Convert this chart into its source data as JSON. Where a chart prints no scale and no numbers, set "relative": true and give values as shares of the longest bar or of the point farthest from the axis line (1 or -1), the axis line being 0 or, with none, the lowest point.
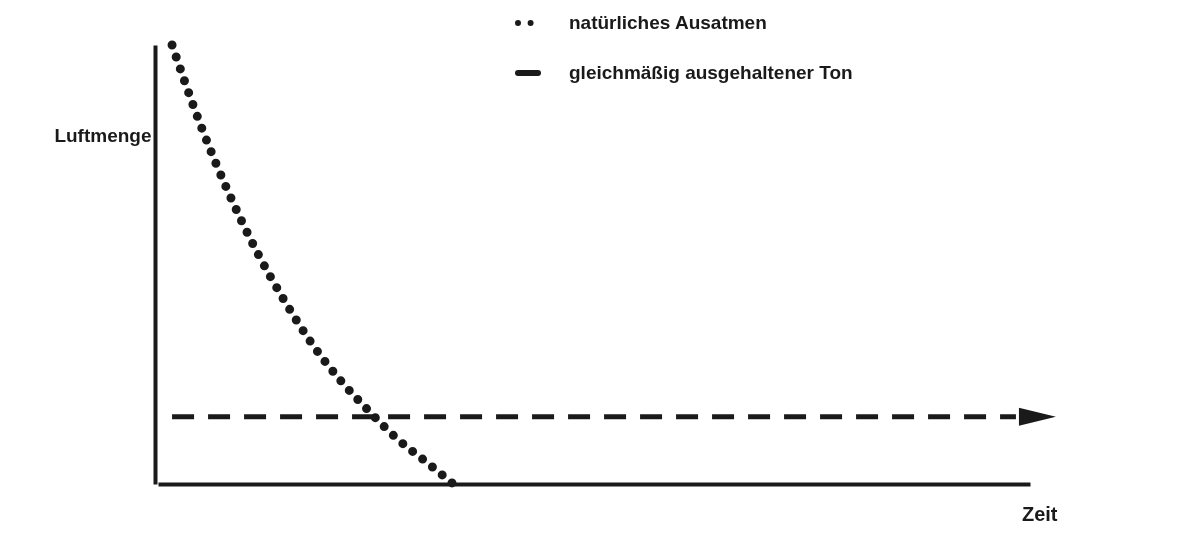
{
  "chart_data": {
    "type": "line",
    "relative": true,
    "xlabel": "Zeit",
    "ylabel": "Luftmenge",
    "legend": "top right",
    "marker": "none",
    "categories": [
      null,
      null,
      null,
      null,
      null,
      null,
      null,
      null,
      null,
      null,
      null,
      null,
      null,
      null,
      null,
      null,
      null,
      null,
      null,
      null,
      null,
      null,
      null,
      null,
      null,
      null,
      null,
      null,
      null,
      null,
      null
    ],
    "series": [
      {
        "name": "natürliches Ausatmen",
        "color": "#1a1a1a",
        "line_style": "dotted",
        "values": [
          1,
          0.82,
          0.665,
          0.531,
          0.417,
          0.317,
          0.235,
          0.166,
          0.103,
          0.052,
          0,
          null,
          null,
          null,
          null,
          null,
          null,
          null,
          null,
          null,
          null,
          null,
          null,
          null,
          null,
          null,
          null,
          null,
          null,
          null,
          null
        ]
      },
      {
        "name": "gleichmäßig ausgehaltener Ton",
        "color": "#1a1a1a",
        "line_style": "dashed",
        "values": [
          0.153,
          0.153,
          0.153,
          0.153,
          0.153,
          0.153,
          0.153,
          0.153,
          0.153,
          0.153,
          0.153,
          0.153,
          0.153,
          0.153,
          0.153,
          0.153,
          0.153,
          0.153,
          0.153,
          0.153,
          0.153,
          0.153,
          0.153,
          0.153,
          0.153,
          0.153,
          0.153,
          0.153,
          0.153,
          0.153,
          0.153
        ]
      }
    ]
  }
}
